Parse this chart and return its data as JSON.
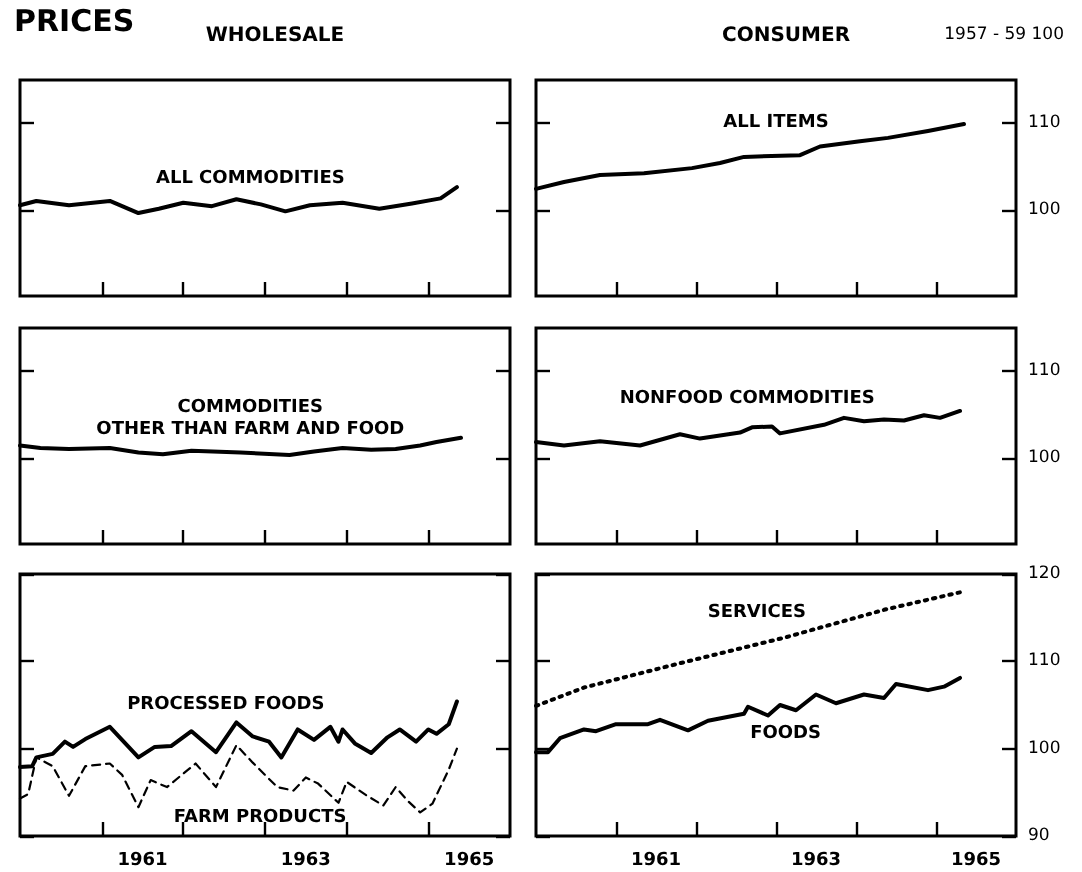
{
  "chart_data": [
    {
      "type": "line",
      "title": "PRICES",
      "subtitle": "WHOLESALE",
      "xlim": [
        1960,
        1966
      ],
      "xticks": [
        {
          "value": 1961,
          "label": null
        },
        {
          "value": 1962,
          "label": null
        },
        {
          "value": 1963,
          "label": null
        },
        {
          "value": 1964,
          "label": null
        },
        {
          "value": 1965,
          "label": null
        }
      ],
      "ylim": [
        90,
        115
      ],
      "yticks": [
        100,
        110
      ],
      "tick_labels": false,
      "marker": "none",
      "grid": false,
      "series": [
        {
          "name": "ALL COMMODITIES",
          "color": "#000000",
          "line_style": "solid",
          "x": [
            1960,
            1960.2,
            1960.6,
            1961.1,
            1961.45,
            1961.7,
            1962,
            1962.35,
            1962.65,
            1962.95,
            1963.25,
            1963.55,
            1963.95,
            1964.4,
            1964.8,
            1965.15,
            1965.35
          ],
          "values": [
            100.5,
            101,
            100.5,
            101,
            99.6,
            100.1,
            100.8,
            100.4,
            101.2,
            100.6,
            99.8,
            100.5,
            100.8,
            100.1,
            100.7,
            101.3,
            102.6
          ]
        }
      ]
    },
    {
      "type": "line",
      "subtitle": "CONSUMER",
      "ylabel": "1957 - 59 100",
      "xlim": [
        1960,
        1966
      ],
      "xticks": [
        {
          "value": 1961,
          "label": null
        },
        {
          "value": 1962,
          "label": null
        },
        {
          "value": 1963,
          "label": null
        },
        {
          "value": 1964,
          "label": null
        },
        {
          "value": 1965,
          "label": null
        }
      ],
      "ylim": [
        90,
        115
      ],
      "yticks": [
        100,
        110
      ],
      "tick_labels": "y",
      "marker": "none",
      "grid": false,
      "series": [
        {
          "name": "ALL ITEMS",
          "color": "#000000",
          "line_style": "solid",
          "x": [
            1960,
            1960.35,
            1960.8,
            1961.35,
            1961.95,
            1962.3,
            1962.6,
            1963.3,
            1963.55,
            1964.05,
            1964.4,
            1964.9,
            1965.35
          ],
          "values": [
            102.4,
            103.2,
            104,
            104.2,
            104.8,
            105.4,
            106.1,
            106.3,
            107.3,
            107.9,
            108.3,
            109.1,
            109.9
          ]
        }
      ]
    },
    {
      "type": "line",
      "xlim": [
        1960,
        1966
      ],
      "xticks": [
        {
          "value": 1961,
          "label": null
        },
        {
          "value": 1962,
          "label": null
        },
        {
          "value": 1963,
          "label": null
        },
        {
          "value": 1964,
          "label": null
        },
        {
          "value": 1965,
          "label": null
        }
      ],
      "ylim": [
        90,
        115
      ],
      "yticks": [
        100,
        110
      ],
      "tick_labels": false,
      "marker": "none",
      "grid": false,
      "series": [
        {
          "name": "COMMODITIES\nOTHER THAN FARM AND FOOD",
          "color": "#000000",
          "line_style": "solid",
          "x": [
            1960,
            1960.25,
            1960.6,
            1961.1,
            1961.45,
            1961.75,
            1962.1,
            1962.7,
            1963.3,
            1963.6,
            1963.95,
            1964.3,
            1964.6,
            1964.9,
            1965.1,
            1965.4
          ],
          "values": [
            101.4,
            101.1,
            101,
            101.1,
            100.6,
            100.4,
            100.8,
            100.6,
            100.3,
            100.7,
            101.1,
            100.9,
            101,
            101.4,
            101.8,
            102.3
          ]
        }
      ]
    },
    {
      "type": "line",
      "xlim": [
        1960,
        1966
      ],
      "xticks": [
        {
          "value": 1961,
          "label": null
        },
        {
          "value": 1962,
          "label": null
        },
        {
          "value": 1963,
          "label": null
        },
        {
          "value": 1964,
          "label": null
        },
        {
          "value": 1965,
          "label": null
        }
      ],
      "ylim": [
        90,
        115
      ],
      "yticks": [
        100,
        110
      ],
      "tick_labels": "y",
      "marker": "none",
      "grid": false,
      "series": [
        {
          "name": "NONFOOD COMMODITIES",
          "color": "#000000",
          "line_style": "solid",
          "x": [
            1960,
            1960.35,
            1960.8,
            1961.3,
            1961.8,
            1962.05,
            1962.55,
            1962.7,
            1962.95,
            1963.05,
            1963.6,
            1963.85,
            1964.1,
            1964.35,
            1964.6,
            1964.85,
            1965.05,
            1965.3
          ],
          "values": [
            101.8,
            101.4,
            101.9,
            101.4,
            102.7,
            102.2,
            102.9,
            103.5,
            103.6,
            102.8,
            103.8,
            104.6,
            104.2,
            104.4,
            104.3,
            104.9,
            104.6,
            105.4
          ]
        }
      ]
    },
    {
      "type": "line",
      "xlim": [
        1960,
        1966
      ],
      "xticks": [
        {
          "value": 1961,
          "label": null
        },
        {
          "value": 1962,
          "label": null
        },
        {
          "value": 1963,
          "label": null
        },
        {
          "value": 1964,
          "label": null
        },
        {
          "value": 1965,
          "label": null
        },
        {
          "value": 1961.5,
          "label": "1961"
        },
        {
          "value": 1963.5,
          "label": "1963"
        },
        {
          "value": 1965.5,
          "label": "1965"
        }
      ],
      "ylim": [
        90,
        120
      ],
      "yticks": [
        90,
        100,
        110,
        120
      ],
      "tick_labels": "x",
      "marker": "none",
      "grid": false,
      "series": [
        {
          "name": "PROCESSED FOODS",
          "color": "#000000",
          "line_style": "solid",
          "x": [
            1960,
            1960.15,
            1960.2,
            1960.4,
            1960.55,
            1960.65,
            1960.8,
            1961.1,
            1961.45,
            1961.65,
            1961.85,
            1962.1,
            1962.4,
            1962.65,
            1962.85,
            1963.05,
            1963.2,
            1963.4,
            1963.6,
            1963.8,
            1963.9,
            1963.95,
            1964.1,
            1964.3,
            1964.5,
            1964.65,
            1964.85,
            1965,
            1965.1,
            1965.25,
            1965.35
          ],
          "values": [
            97.9,
            98,
            99,
            99.4,
            100.8,
            100.2,
            101.1,
            102.5,
            99,
            100.2,
            100.3,
            102,
            99.6,
            103,
            101.4,
            100.8,
            99,
            102.2,
            101,
            102.5,
            100.8,
            102.2,
            100.6,
            99.5,
            101.3,
            102.2,
            100.8,
            102.2,
            101.7,
            102.8,
            105.4
          ]
        },
        {
          "name": "FARM PRODUCTS",
          "color": "#000000",
          "line_style": "dashed",
          "x": [
            1960,
            1960.1,
            1960.2,
            1960.4,
            1960.6,
            1960.8,
            1961.1,
            1961.25,
            1961.45,
            1961.6,
            1961.8,
            1962.15,
            1962.4,
            1962.65,
            1962.85,
            1963.15,
            1963.35,
            1963.5,
            1963.65,
            1963.9,
            1964,
            1964.25,
            1964.45,
            1964.6,
            1964.75,
            1964.9,
            1965.05,
            1965.25,
            1965.35
          ],
          "values": [
            94.3,
            94.8,
            99,
            98,
            94.6,
            98,
            98.3,
            97,
            93.3,
            96.4,
            95.6,
            98.3,
            95.6,
            100.4,
            98.4,
            95.6,
            95.2,
            96.7,
            96,
            93.8,
            96.2,
            94.6,
            93.5,
            95.6,
            94,
            92.7,
            93.7,
            97.6,
            100
          ]
        }
      ]
    },
    {
      "type": "line",
      "xlim": [
        1960,
        1966
      ],
      "xticks": [
        {
          "value": 1961,
          "label": null
        },
        {
          "value": 1962,
          "label": null
        },
        {
          "value": 1963,
          "label": null
        },
        {
          "value": 1964,
          "label": null
        },
        {
          "value": 1965,
          "label": null
        },
        {
          "value": 1961.5,
          "label": "1961"
        },
        {
          "value": 1963.5,
          "label": "1963"
        },
        {
          "value": 1965.5,
          "label": "1965"
        }
      ],
      "ylim": [
        90,
        120
      ],
      "yticks": [
        90,
        100,
        110,
        120
      ],
      "marker": "none",
      "grid": false,
      "series": [
        {
          "name": "SERVICES",
          "color": "#000000",
          "line_style": "dotted",
          "x": [
            1960,
            1960.6,
            1961.85,
            1963.1,
            1964.35,
            1965.3
          ],
          "values": [
            104.9,
            107,
            109.9,
            112.7,
            115.9,
            117.9
          ]
        },
        {
          "name": "FOODS",
          "color": "#000000",
          "line_style": "solid",
          "x": [
            1960,
            1960.15,
            1960.3,
            1960.6,
            1960.75,
            1961,
            1961.4,
            1961.55,
            1961.9,
            1962.15,
            1962.6,
            1962.65,
            1962.9,
            1963.05,
            1963.25,
            1963.5,
            1963.75,
            1964.1,
            1964.35,
            1964.5,
            1964.9,
            1965.1,
            1965.3
          ],
          "values": [
            99.6,
            99.6,
            101.2,
            102.2,
            102,
            102.8,
            102.8,
            103.3,
            102.1,
            103.2,
            104,
            104.8,
            103.8,
            105,
            104.4,
            106.2,
            105.2,
            106.2,
            105.8,
            107.4,
            106.7,
            107.1,
            108.1
          ]
        }
      ]
    }
  ]
}
